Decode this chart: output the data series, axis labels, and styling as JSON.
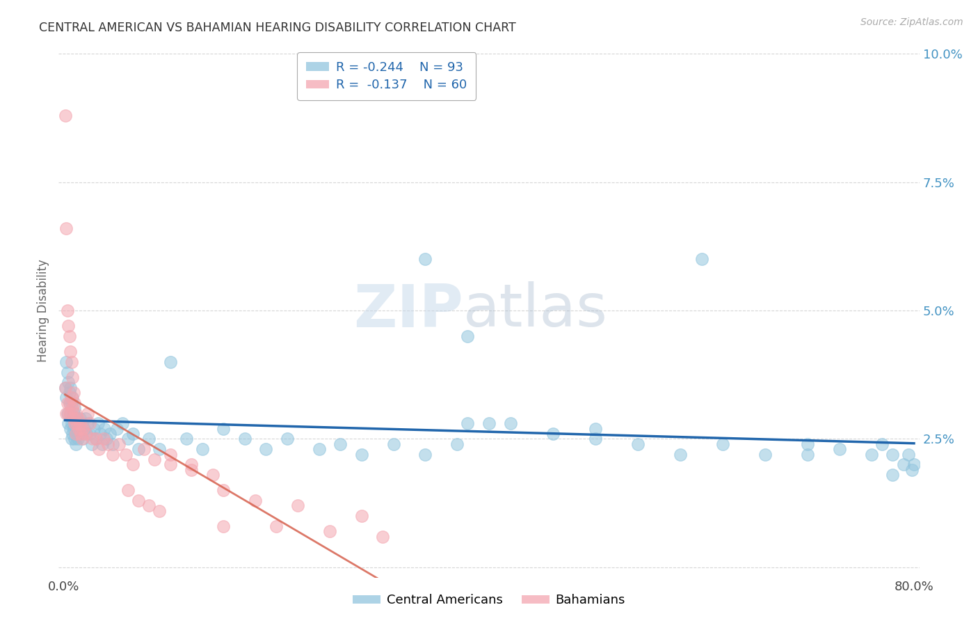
{
  "title": "CENTRAL AMERICAN VS BAHAMIAN HEARING DISABILITY CORRELATION CHART",
  "source": "Source: ZipAtlas.com",
  "ylabel": "Hearing Disability",
  "xlim": [
    -0.005,
    0.805
  ],
  "ylim": [
    -0.002,
    0.102
  ],
  "yticks": [
    0.0,
    0.025,
    0.05,
    0.075,
    0.1
  ],
  "ytick_labels": [
    "",
    "2.5%",
    "5.0%",
    "7.5%",
    "10.0%"
  ],
  "xticks": [
    0.0,
    0.1,
    0.2,
    0.3,
    0.4,
    0.5,
    0.6,
    0.7,
    0.8
  ],
  "xtick_labels": [
    "0.0%",
    "",
    "",
    "",
    "",
    "",
    "",
    "",
    "80.0%"
  ],
  "blue_R": -0.244,
  "blue_N": 93,
  "pink_R": -0.137,
  "pink_N": 60,
  "blue_color": "#92c5de",
  "pink_color": "#f4a6b0",
  "blue_line_color": "#2166ac",
  "pink_line_color": "#d6604d",
  "watermark_zip": "ZIP",
  "watermark_atlas": "atlas",
  "legend_label_blue": "Central Americans",
  "legend_label_pink": "Bahamians",
  "background_color": "#ffffff",
  "grid_color": "#cccccc",
  "title_color": "#333333",
  "axis_label_color": "#666666",
  "tick_label_color_right": "#4393c3",
  "blue_x": [
    0.001,
    0.002,
    0.002,
    0.003,
    0.003,
    0.004,
    0.004,
    0.005,
    0.005,
    0.006,
    0.006,
    0.006,
    0.007,
    0.007,
    0.007,
    0.008,
    0.008,
    0.008,
    0.009,
    0.009,
    0.01,
    0.01,
    0.01,
    0.011,
    0.011,
    0.012,
    0.012,
    0.013,
    0.013,
    0.014,
    0.015,
    0.016,
    0.017,
    0.018,
    0.019,
    0.02,
    0.021,
    0.022,
    0.024,
    0.026,
    0.028,
    0.03,
    0.032,
    0.034,
    0.036,
    0.038,
    0.04,
    0.043,
    0.046,
    0.05,
    0.055,
    0.06,
    0.065,
    0.07,
    0.08,
    0.09,
    0.1,
    0.115,
    0.13,
    0.15,
    0.17,
    0.19,
    0.21,
    0.24,
    0.26,
    0.28,
    0.31,
    0.34,
    0.37,
    0.4,
    0.34,
    0.38,
    0.42,
    0.46,
    0.5,
    0.54,
    0.58,
    0.62,
    0.66,
    0.7,
    0.73,
    0.76,
    0.77,
    0.78,
    0.79,
    0.795,
    0.798,
    0.8,
    0.38,
    0.5,
    0.6,
    0.7,
    0.78
  ],
  "blue_y": [
    0.035,
    0.04,
    0.033,
    0.038,
    0.03,
    0.036,
    0.028,
    0.034,
    0.032,
    0.03,
    0.035,
    0.027,
    0.032,
    0.028,
    0.025,
    0.033,
    0.029,
    0.026,
    0.03,
    0.027,
    0.028,
    0.025,
    0.031,
    0.027,
    0.024,
    0.029,
    0.026,
    0.028,
    0.025,
    0.027,
    0.029,
    0.026,
    0.028,
    0.025,
    0.027,
    0.029,
    0.026,
    0.028,
    0.026,
    0.024,
    0.027,
    0.025,
    0.028,
    0.026,
    0.024,
    0.027,
    0.025,
    0.026,
    0.024,
    0.027,
    0.028,
    0.025,
    0.026,
    0.023,
    0.025,
    0.023,
    0.04,
    0.025,
    0.023,
    0.027,
    0.025,
    0.023,
    0.025,
    0.023,
    0.024,
    0.022,
    0.024,
    0.022,
    0.024,
    0.028,
    0.06,
    0.045,
    0.028,
    0.026,
    0.025,
    0.024,
    0.022,
    0.024,
    0.022,
    0.024,
    0.023,
    0.022,
    0.024,
    0.022,
    0.02,
    0.022,
    0.019,
    0.02,
    0.028,
    0.027,
    0.06,
    0.022,
    0.018
  ],
  "pink_x": [
    0.001,
    0.001,
    0.002,
    0.002,
    0.003,
    0.003,
    0.004,
    0.004,
    0.005,
    0.005,
    0.006,
    0.006,
    0.007,
    0.007,
    0.008,
    0.008,
    0.009,
    0.009,
    0.01,
    0.01,
    0.011,
    0.011,
    0.012,
    0.013,
    0.014,
    0.015,
    0.016,
    0.017,
    0.018,
    0.02,
    0.022,
    0.024,
    0.027,
    0.03,
    0.033,
    0.037,
    0.041,
    0.046,
    0.052,
    0.058,
    0.065,
    0.075,
    0.085,
    0.1,
    0.12,
    0.14,
    0.06,
    0.07,
    0.08,
    0.09,
    0.1,
    0.12,
    0.15,
    0.18,
    0.22,
    0.28,
    0.15,
    0.2,
    0.25,
    0.3
  ],
  "pink_y": [
    0.088,
    0.035,
    0.066,
    0.03,
    0.05,
    0.032,
    0.047,
    0.03,
    0.045,
    0.032,
    0.042,
    0.03,
    0.04,
    0.033,
    0.037,
    0.031,
    0.034,
    0.029,
    0.032,
    0.028,
    0.03,
    0.026,
    0.028,
    0.029,
    0.027,
    0.028,
    0.026,
    0.025,
    0.027,
    0.026,
    0.03,
    0.028,
    0.025,
    0.025,
    0.023,
    0.025,
    0.024,
    0.022,
    0.024,
    0.022,
    0.02,
    0.023,
    0.021,
    0.02,
    0.019,
    0.018,
    0.015,
    0.013,
    0.012,
    0.011,
    0.022,
    0.02,
    0.015,
    0.013,
    0.012,
    0.01,
    0.008,
    0.008,
    0.007,
    0.006
  ]
}
